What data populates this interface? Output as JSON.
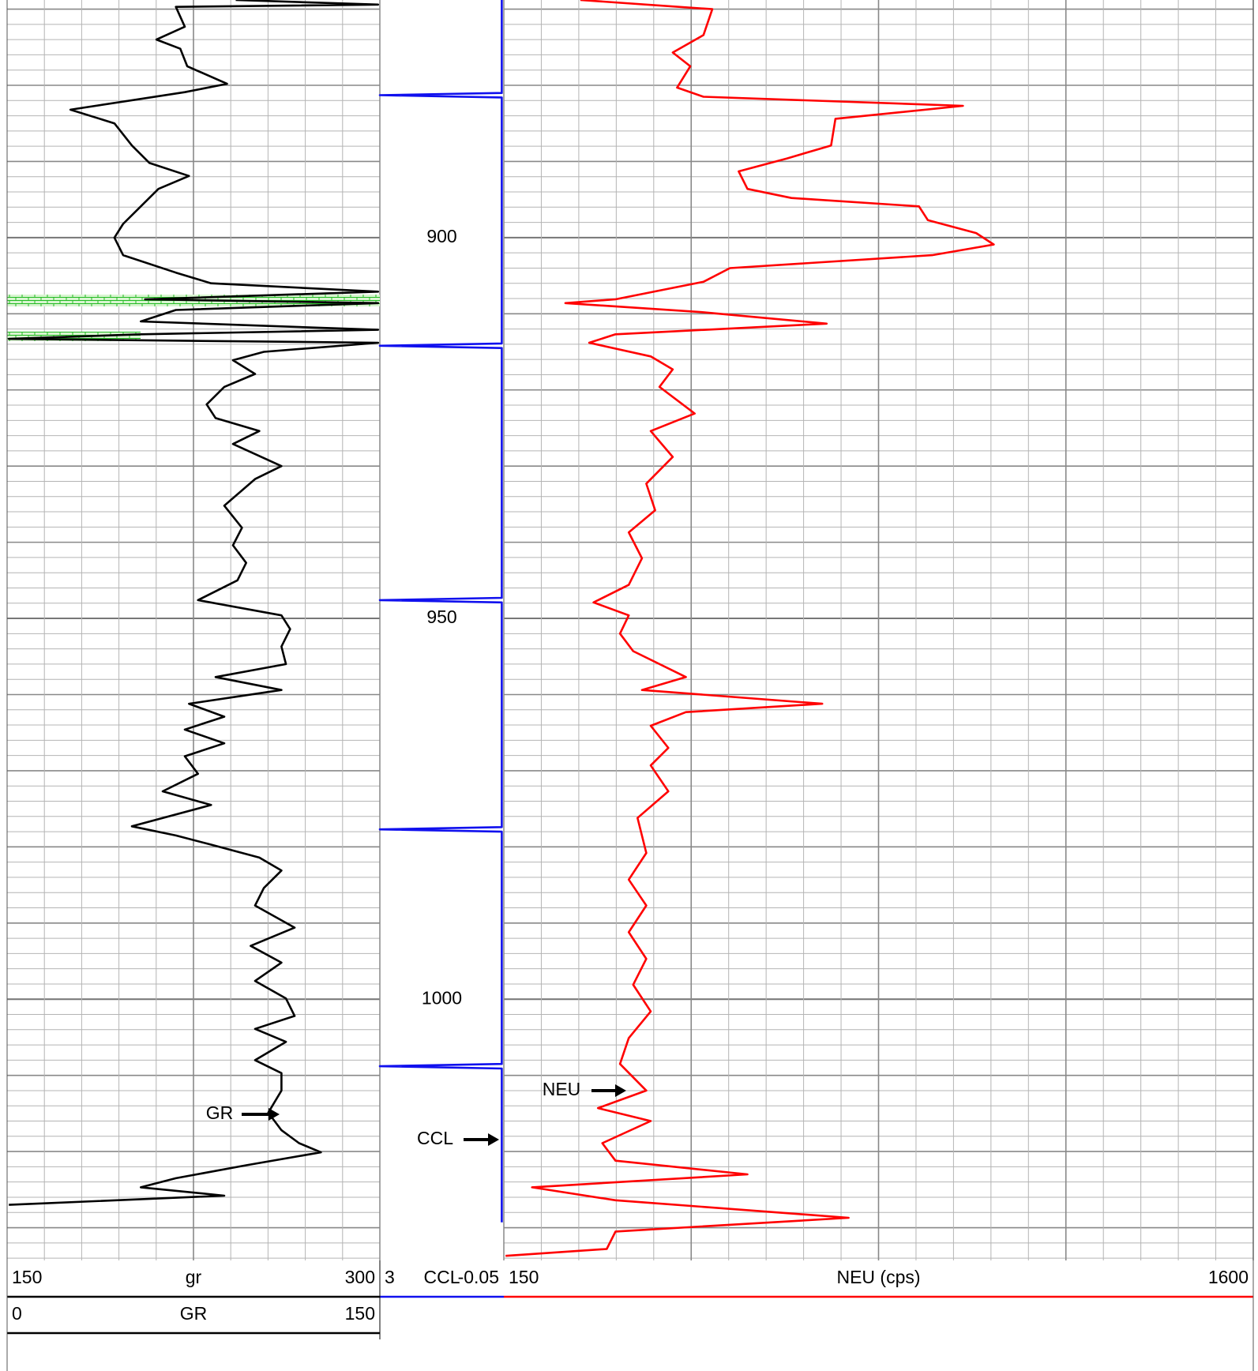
{
  "chart_data": {
    "type": "well_log",
    "ylim": [
      868.8,
      1034.3
    ],
    "yticks": [
      900,
      950,
      1000
    ],
    "depth_grid": {
      "minor": 2,
      "major": 10
    },
    "tracks": [
      {
        "grid_divisions": 10,
        "major_every": 5,
        "color": "#000000",
        "annotation": "GR",
        "scales": [
          {
            "name": "gr",
            "xlim": [
              150,
              300
            ]
          },
          {
            "name": "GR",
            "xlim": [
              0,
              150
            ],
            "depth": [
              868.8,
              869.4,
              869.7,
              872.3,
              874.0,
              875.2,
              877.5,
              879.8,
              880.9,
              883.2,
              885.0,
              887.9,
              890.2,
              891.9,
              893.6,
              895.9,
              898.2,
              900.0,
              902.3,
              904.6,
              906.0,
              907.1,
              908.1,
              908.6,
              909.5,
              911.0,
              912.1,
              912.7,
              913.3,
              913.8,
              915.0,
              916.1,
              917.9,
              919.6,
              921.9,
              923.7,
              925.4,
              927.1,
              930.0,
              931.7,
              935.2,
              938.1,
              940.4,
              942.7,
              945.0,
              947.6,
              949.6,
              951.4,
              953.7,
              956.0,
              957.7,
              959.4,
              961.2,
              962.9,
              964.6,
              966.4,
              968.1,
              970.4,
              972.7,
              974.5,
              977.3,
              978.5,
              979.7,
              981.4,
              983.1,
              985.4,
              987.7,
              990.6,
              993.0,
              995.2,
              997.6,
              999.9,
              1002.2,
              1003.9,
              1005.6,
              1008.0,
              1009.7,
              1012.0,
              1014.9,
              1017.2,
              1018.9,
              1020.1,
              1021.8,
              1023.5,
              1024.7,
              1025.8,
              1027.0
            ],
            "values": [
              92.0,
              149.3,
              67.9,
              71.5,
              60.1,
              69.7,
              72.5,
              88.5,
              71.5,
              25.5,
              43.2,
              50.2,
              57.3,
              73.2,
              60.9,
              53.8,
              46.7,
              43.2,
              46.7,
              67.9,
              82.1,
              149.3,
              55.5,
              149.3,
              67.9,
              53.8,
              149.3,
              53.8,
              0.7,
              149.3,
              103.3,
              90.9,
              99.8,
              87.4,
              80.3,
              83.9,
              101.5,
              90.9,
              110.4,
              99.8,
              87.4,
              94.5,
              90.9,
              96.2,
              92.7,
              76.8,
              110.4,
              113.9,
              110.4,
              112.2,
              83.9,
              110.4,
              73.2,
              87.4,
              71.5,
              87.4,
              71.5,
              76.8,
              62.6,
              82.1,
              50.2,
              67.9,
              82.1,
              101.5,
              110.4,
              103.3,
              99.8,
              115.7,
              98.0,
              110.4,
              99.8,
              112.2,
              115.7,
              99.8,
              112.2,
              99.8,
              110.4,
              110.4,
              105.1,
              110.4,
              117.5,
              126.3,
              96.2,
              67.9,
              53.8,
              87.4,
              0.7
            ]
          }
        ]
      },
      {
        "grid_divisions": 0,
        "major_every": 0,
        "color": "#1010ee",
        "annotation": "CCL",
        "scales": [
          {
            "name": "CCL",
            "xlim": [
              3,
              -0.05
            ],
            "depth": [
              868.8,
              881.0,
              881.3,
              881.6,
              913.9,
              914.2,
              914.5,
              947.3,
              947.6,
              947.9,
              977.4,
              977.7,
              978.0,
              1008.5,
              1008.8,
              1009.1,
              1029.3
            ],
            "values": [
              0,
              0,
              3,
              0,
              0,
              3,
              0,
              0,
              3,
              0,
              0,
              3,
              0,
              0,
              3,
              0,
              0
            ]
          }
        ]
      },
      {
        "grid_divisions": 20,
        "major_every": 5,
        "color": "#ff0000",
        "annotation": "NEU",
        "scales": [
          {
            "name": "NEU (cps)",
            "xlim": [
              150,
              1600
            ],
            "depth": [
              868.8,
              870.0,
              873.4,
              875.7,
              877.5,
              880.3,
              881.5,
              882.7,
              884.4,
              887.9,
              889.6,
              891.3,
              893.6,
              894.8,
              895.9,
              897.7,
              899.4,
              900.9,
              902.3,
              904.0,
              905.8,
              908.1,
              908.6,
              909.8,
              911.3,
              912.7,
              913.8,
              915.6,
              917.3,
              919.6,
              923.1,
              925.4,
              928.8,
              932.3,
              935.8,
              938.7,
              942.1,
              945.6,
              947.9,
              949.6,
              952.0,
              954.3,
              957.7,
              959.4,
              961.2,
              962.3,
              964.1,
              967.0,
              969.3,
              972.7,
              976.2,
              980.8,
              984.3,
              987.7,
              991.2,
              994.7,
              998.1,
              1001.6,
              1005.1,
              1008.5,
              1012.0,
              1014.3,
              1016.0,
              1018.9,
              1021.2,
              1023.0,
              1024.7,
              1026.4,
              1028.7,
              1030.5,
              1032.8,
              1033.7
            ],
            "values": [
              298.1,
              553.3,
              536.3,
              476.8,
              510.8,
              485.3,
              536.3,
              1038.4,
              791.6,
              783.1,
              698.0,
              604.4,
              621.4,
              706.5,
              953.3,
              970.3,
              1063.9,
              1097.9,
              978.8,
              587.4,
              536.3,
              366.1,
              269.1,
              536.3,
              774.6,
              366.1,
              315.1,
              434.2,
              476.8,
              451.2,
              519.3,
              434.2,
              476.8,
              425.7,
              442.7,
              391.7,
              417.2,
              391.7,
              323.6,
              391.7,
              374.7,
              400.2,
              502.3,
              417.2,
              766.1,
              502.3,
              434.2,
              468.3,
              434.2,
              468.3,
              408.7,
              425.7,
              391.7,
              425.7,
              391.7,
              425.7,
              400.2,
              434.2,
              391.7,
              374.7,
              425.7,
              332.1,
              434.2,
              340.6,
              366.1,
              621.4,
              204.5,
              366.1,
              817.1,
              366.1,
              349.1,
              153.4
            ]
          }
        ]
      }
    ]
  }
}
